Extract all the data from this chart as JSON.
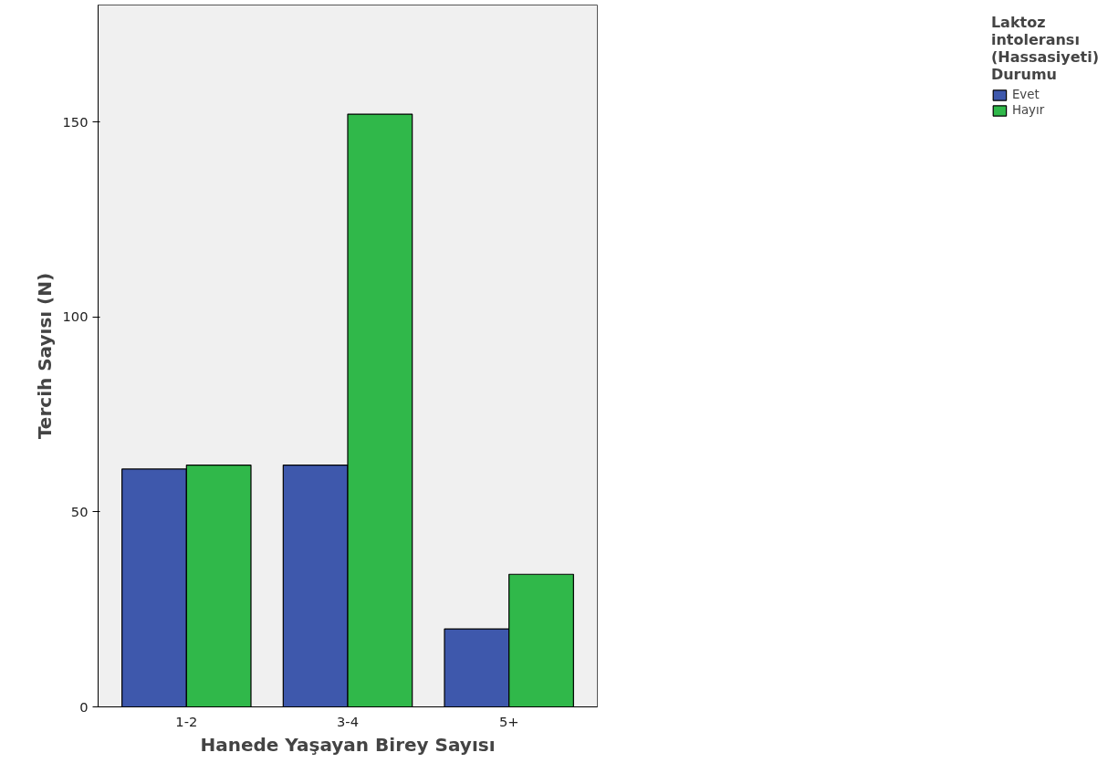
{
  "chart_data": {
    "type": "bar",
    "xlabel": "Hanede Yaşayan Birey Sayısı",
    "ylabel": "Tercih Sayısı (N)",
    "legend_title": "Laktoz intoleransı (Hassasiyeti) Durumu",
    "categories": [
      "1-2",
      "3-4",
      "5+"
    ],
    "series": [
      {
        "name": "Evet",
        "color": "#3e58ac",
        "values": [
          61,
          62,
          20
        ]
      },
      {
        "name": "Hayır",
        "color": "#30b84a",
        "values": [
          62,
          152,
          34
        ]
      }
    ],
    "ylim": [
      0,
      180
    ],
    "yticks": [
      0,
      50,
      100,
      150
    ],
    "grid": false,
    "legend": "top right"
  }
}
